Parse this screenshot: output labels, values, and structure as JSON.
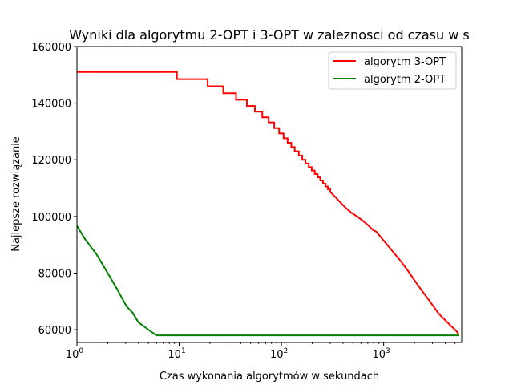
{
  "chart_data": {
    "type": "line",
    "title": "Wyniki dla algorytmu 2-OPT i 3-OPT w zaleznosci od czasu w s",
    "xlabel": "Czas wykonania algorytmów w sekundach",
    "ylabel": "Najlepsze rozwiązanie",
    "xscale": "log",
    "xlim": [
      1,
      5800
    ],
    "ylim": [
      55500,
      160000
    ],
    "x_ticks": [
      {
        "value": 1,
        "label": "10",
        "exp": "0"
      },
      {
        "value": 10,
        "label": "10",
        "exp": "1"
      },
      {
        "value": 100,
        "label": "10",
        "exp": "2"
      },
      {
        "value": 1000,
        "label": "10",
        "exp": "3"
      }
    ],
    "y_ticks": [
      {
        "value": 60000,
        "label": "60000"
      },
      {
        "value": 80000,
        "label": "80000"
      },
      {
        "value": 100000,
        "label": "100000"
      },
      {
        "value": 120000,
        "label": "120000"
      },
      {
        "value": 140000,
        "label": "140000"
      },
      {
        "value": 160000,
        "label": "160000"
      }
    ],
    "legend_position": "top-right",
    "series": [
      {
        "name": "algorytm 3-OPT",
        "color": "#ff0000",
        "step": true,
        "points": [
          [
            1,
            151000
          ],
          [
            9.5,
            151000
          ],
          [
            9.5,
            148500
          ],
          [
            19,
            148500
          ],
          [
            19,
            146000
          ],
          [
            27,
            146000
          ],
          [
            27,
            143500
          ],
          [
            36,
            143500
          ],
          [
            36,
            141200
          ],
          [
            46,
            141200
          ],
          [
            46,
            139000
          ],
          [
            55,
            139000
          ],
          [
            55,
            137000
          ],
          [
            65,
            137000
          ],
          [
            65,
            135000
          ],
          [
            75,
            135000
          ],
          [
            75,
            133200
          ],
          [
            85,
            133200
          ],
          [
            85,
            131200
          ],
          [
            95,
            131200
          ],
          [
            95,
            129300
          ],
          [
            105,
            129300
          ],
          [
            105,
            127600
          ],
          [
            115,
            127600
          ],
          [
            115,
            126000
          ],
          [
            125,
            126000
          ],
          [
            125,
            124500
          ],
          [
            135,
            124500
          ],
          [
            135,
            123000
          ],
          [
            148,
            123000
          ],
          [
            148,
            121500
          ],
          [
            160,
            121500
          ],
          [
            160,
            120000
          ],
          [
            172,
            120000
          ],
          [
            172,
            118700
          ],
          [
            185,
            118700
          ],
          [
            185,
            117400
          ],
          [
            198,
            117400
          ],
          [
            198,
            116200
          ],
          [
            212,
            116200
          ],
          [
            212,
            115000
          ],
          [
            226,
            115000
          ],
          [
            226,
            113800
          ],
          [
            240,
            113800
          ],
          [
            240,
            112700
          ],
          [
            255,
            112700
          ],
          [
            255,
            111600
          ],
          [
            270,
            111600
          ],
          [
            270,
            110600
          ],
          [
            285,
            110600
          ],
          [
            285,
            109600
          ],
          [
            300,
            109600
          ],
          [
            300,
            108700
          ],
          [
            330,
            107200
          ],
          [
            370,
            105300
          ],
          [
            420,
            103200
          ],
          [
            480,
            101400
          ],
          [
            550,
            100000
          ],
          [
            620,
            98600
          ],
          [
            700,
            97000
          ],
          [
            780,
            95300
          ],
          [
            850,
            94600
          ],
          [
            900,
            93500
          ],
          [
            1000,
            91500
          ],
          [
            1100,
            89700
          ],
          [
            1250,
            87300
          ],
          [
            1450,
            84500
          ],
          [
            1700,
            81200
          ],
          [
            2000,
            77500
          ],
          [
            2400,
            73500
          ],
          [
            2900,
            69500
          ],
          [
            3400,
            66000
          ],
          [
            3600,
            65000
          ],
          [
            4000,
            63400
          ],
          [
            4500,
            61500
          ],
          [
            5000,
            60000
          ],
          [
            5400,
            58600
          ]
        ]
      },
      {
        "name": "algorytm 2-OPT",
        "color": "#008000",
        "step": false,
        "points": [
          [
            1,
            96700
          ],
          [
            1.2,
            92000
          ],
          [
            1.55,
            86700
          ],
          [
            2,
            80000
          ],
          [
            2.5,
            74000
          ],
          [
            3.05,
            68300
          ],
          [
            3.5,
            66000
          ],
          [
            4,
            62600
          ],
          [
            5,
            60000
          ],
          [
            6,
            58000
          ],
          [
            10,
            58000
          ],
          [
            100,
            58000
          ],
          [
            1000,
            58000
          ],
          [
            5500,
            58000
          ]
        ]
      }
    ]
  }
}
